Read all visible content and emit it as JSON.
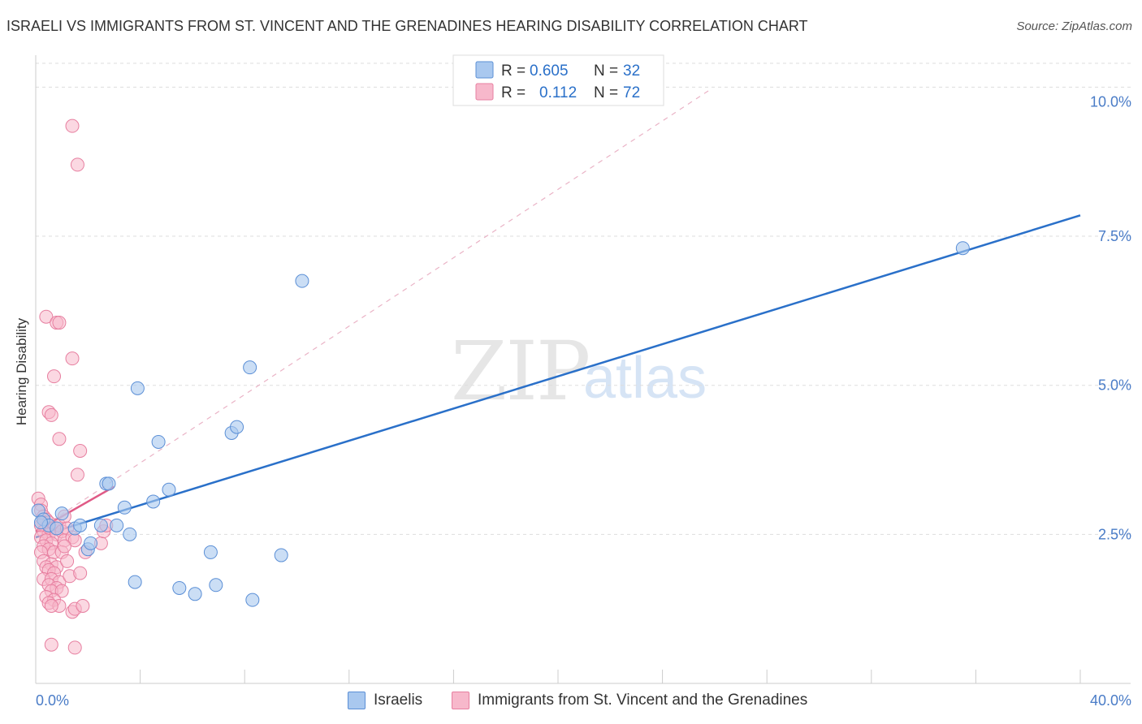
{
  "title": "ISRAELI VS IMMIGRANTS FROM ST. VINCENT AND THE GRENADINES HEARING DISABILITY CORRELATION CHART",
  "source": "Source: ZipAtlas.com",
  "watermark": {
    "zip": "ZIP",
    "atlas": "atlas"
  },
  "colors": {
    "blue_fill": "#a9c8ef",
    "blue_stroke": "#5b8fd6",
    "blue_line": "#2a70c9",
    "pink_fill": "#f7b8cb",
    "pink_stroke": "#e77fa0",
    "pink_line": "#e05a86",
    "tick_text": "#4a7cc7"
  },
  "legend_top": {
    "rows": [
      {
        "r_label": "R =",
        "r_value": "0.605",
        "n_label": "N =",
        "n_value": "32"
      },
      {
        "r_label": "R =",
        "r_value": "0.112",
        "n_label": "N =",
        "n_value": "72"
      }
    ]
  },
  "legend_bottom": {
    "items": [
      {
        "label": "Israelis"
      },
      {
        "label": "Immigrants from St. Vincent and the Grenadines"
      }
    ]
  },
  "chart_data": {
    "type": "scatter",
    "title": "ISRAELI VS IMMIGRANTS FROM ST. VINCENT AND THE GRENADINES HEARING DISABILITY CORRELATION CHART",
    "xlabel": "",
    "ylabel": "Hearing Disability",
    "xlim": [
      0,
      40
    ],
    "ylim": [
      0,
      10.4
    ],
    "x_tick_labels": [
      "0.0%",
      "40.0%"
    ],
    "y_ticks": [
      {
        "value": 2.5,
        "label": "2.5%"
      },
      {
        "value": 5.0,
        "label": "5.0%"
      },
      {
        "value": 7.5,
        "label": "7.5%"
      },
      {
        "value": 10.0,
        "label": "10.0%"
      }
    ],
    "series": [
      {
        "name": "Israelis",
        "r": 0.605,
        "n": 32,
        "points": [
          [
            0.1,
            2.9
          ],
          [
            0.3,
            2.75
          ],
          [
            0.5,
            2.65
          ],
          [
            0.8,
            2.6
          ],
          [
            1.0,
            2.85
          ],
          [
            1.5,
            2.6
          ],
          [
            1.7,
            2.65
          ],
          [
            2.0,
            2.25
          ],
          [
            2.1,
            2.35
          ],
          [
            2.5,
            2.65
          ],
          [
            2.7,
            3.35
          ],
          [
            2.8,
            3.35
          ],
          [
            3.1,
            2.65
          ],
          [
            3.4,
            2.95
          ],
          [
            3.6,
            2.5
          ],
          [
            3.8,
            1.7
          ],
          [
            3.9,
            4.95
          ],
          [
            4.5,
            3.05
          ],
          [
            4.7,
            4.05
          ],
          [
            5.1,
            3.25
          ],
          [
            5.5,
            1.6
          ],
          [
            6.1,
            1.5
          ],
          [
            6.7,
            2.2
          ],
          [
            6.9,
            1.65
          ],
          [
            7.5,
            4.2
          ],
          [
            7.7,
            4.3
          ],
          [
            8.2,
            5.3
          ],
          [
            8.3,
            1.4
          ],
          [
            9.4,
            2.15
          ],
          [
            10.2,
            6.75
          ],
          [
            35.5,
            7.3
          ],
          [
            0.2,
            2.7
          ]
        ],
        "trend": {
          "x1": 0,
          "y1": 2.45,
          "x2": 40,
          "y2": 7.85
        }
      },
      {
        "name": "Immigrants from St. Vincent and the Grenadines",
        "r": 0.112,
        "n": 72,
        "points": [
          [
            1.4,
            9.35
          ],
          [
            1.6,
            8.7
          ],
          [
            0.4,
            6.15
          ],
          [
            0.8,
            6.05
          ],
          [
            0.9,
            6.05
          ],
          [
            1.4,
            5.45
          ],
          [
            0.7,
            5.15
          ],
          [
            0.5,
            4.55
          ],
          [
            0.6,
            4.5
          ],
          [
            0.9,
            4.1
          ],
          [
            1.7,
            3.9
          ],
          [
            1.6,
            3.5
          ],
          [
            0.1,
            3.1
          ],
          [
            0.2,
            3.0
          ],
          [
            0.2,
            2.9
          ],
          [
            0.3,
            2.8
          ],
          [
            0.4,
            2.75
          ],
          [
            0.3,
            2.7
          ],
          [
            0.5,
            2.7
          ],
          [
            0.2,
            2.65
          ],
          [
            0.4,
            2.6
          ],
          [
            0.6,
            2.6
          ],
          [
            0.7,
            2.6
          ],
          [
            0.3,
            2.55
          ],
          [
            0.5,
            2.5
          ],
          [
            0.8,
            2.5
          ],
          [
            0.9,
            2.65
          ],
          [
            1.0,
            2.55
          ],
          [
            1.1,
            2.8
          ],
          [
            1.2,
            2.6
          ],
          [
            0.2,
            2.45
          ],
          [
            0.4,
            2.4
          ],
          [
            0.6,
            2.35
          ],
          [
            0.3,
            2.3
          ],
          [
            0.5,
            2.25
          ],
          [
            0.2,
            2.2
          ],
          [
            0.7,
            2.2
          ],
          [
            1.1,
            2.4
          ],
          [
            1.4,
            2.45
          ],
          [
            1.0,
            2.2
          ],
          [
            0.3,
            2.05
          ],
          [
            0.6,
            2.0
          ],
          [
            0.4,
            1.95
          ],
          [
            0.8,
            1.95
          ],
          [
            0.5,
            1.9
          ],
          [
            0.7,
            1.85
          ],
          [
            0.3,
            1.75
          ],
          [
            0.6,
            1.75
          ],
          [
            0.9,
            1.7
          ],
          [
            0.5,
            1.65
          ],
          [
            0.8,
            1.6
          ],
          [
            0.6,
            1.55
          ],
          [
            1.0,
            1.55
          ],
          [
            0.4,
            1.45
          ],
          [
            0.7,
            1.4
          ],
          [
            0.5,
            1.35
          ],
          [
            0.9,
            1.3
          ],
          [
            0.6,
            1.3
          ],
          [
            1.4,
            1.2
          ],
          [
            1.5,
            1.25
          ],
          [
            1.8,
            1.3
          ],
          [
            0.6,
            0.65
          ],
          [
            1.5,
            0.6
          ],
          [
            1.3,
            1.8
          ],
          [
            1.2,
            2.05
          ],
          [
            1.9,
            2.2
          ],
          [
            2.5,
            2.35
          ],
          [
            2.6,
            2.55
          ],
          [
            2.7,
            2.65
          ],
          [
            1.5,
            2.4
          ],
          [
            1.7,
            1.85
          ],
          [
            1.1,
            2.3
          ]
        ],
        "trend": {
          "x1": 0,
          "y1": 2.55,
          "x2": 3.0,
          "y2": 3.3
        },
        "trend_extended": {
          "x1": 0,
          "y1": 2.55,
          "x2": 25.8,
          "y2": 9.95
        }
      }
    ]
  }
}
